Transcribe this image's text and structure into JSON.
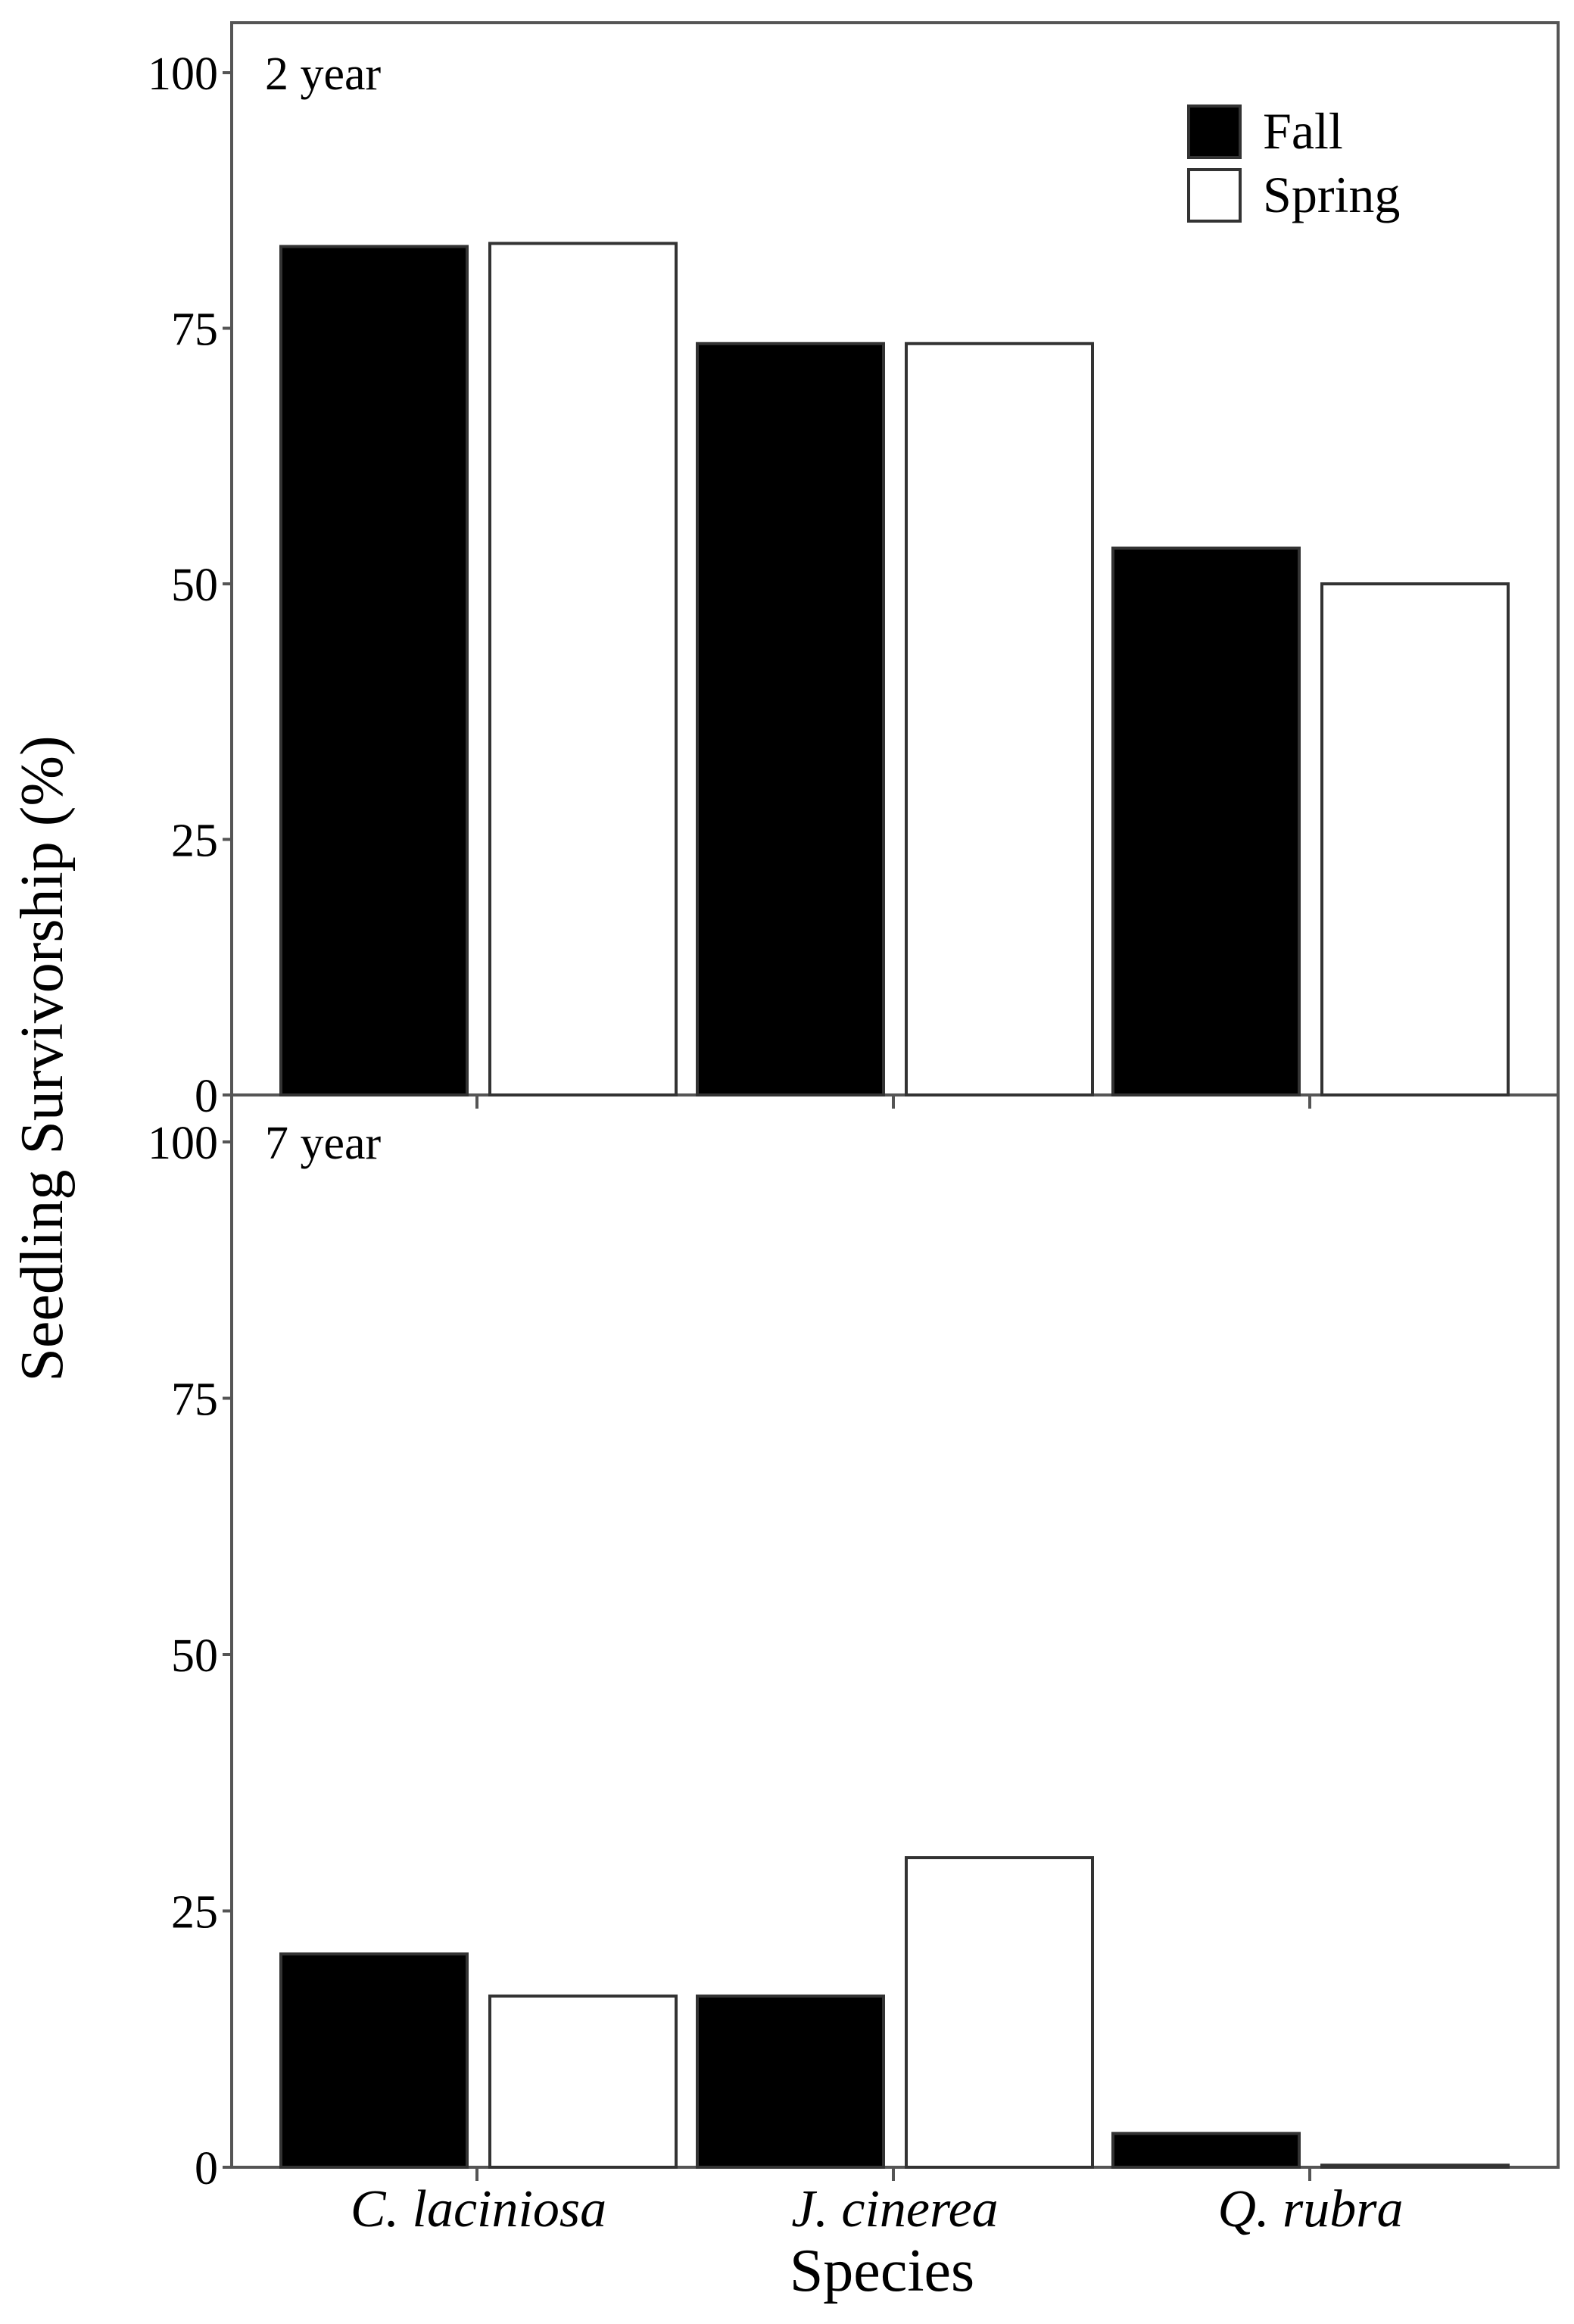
{
  "chart_data": {
    "type": "bar",
    "ylabel": "Seedling Survivorship (%)",
    "xlabel": "Species",
    "categories": [
      "C. laciniosa",
      "J. cinerea",
      "Q. rubra"
    ],
    "ylim": [
      0,
      100
    ],
    "yticks": [
      "0",
      "25",
      "50",
      "75",
      "100"
    ],
    "legend": {
      "position": "top-right",
      "entries": [
        {
          "name": "Fall",
          "color": "#000000"
        },
        {
          "name": "Spring",
          "color": "#ffffff"
        }
      ]
    },
    "panels": [
      {
        "label": "2 year",
        "series": [
          {
            "name": "Fall",
            "values": [
              83,
              73.5,
              53.5
            ]
          },
          {
            "name": "Spring",
            "values": [
              83.3,
              73.5,
              50
            ]
          }
        ]
      },
      {
        "label": "7 year",
        "series": [
          {
            "name": "Fall",
            "values": [
              20.8,
              16.7,
              3.3
            ]
          },
          {
            "name": "Spring",
            "values": [
              16.7,
              30.2,
              0.2
            ]
          }
        ]
      }
    ]
  }
}
